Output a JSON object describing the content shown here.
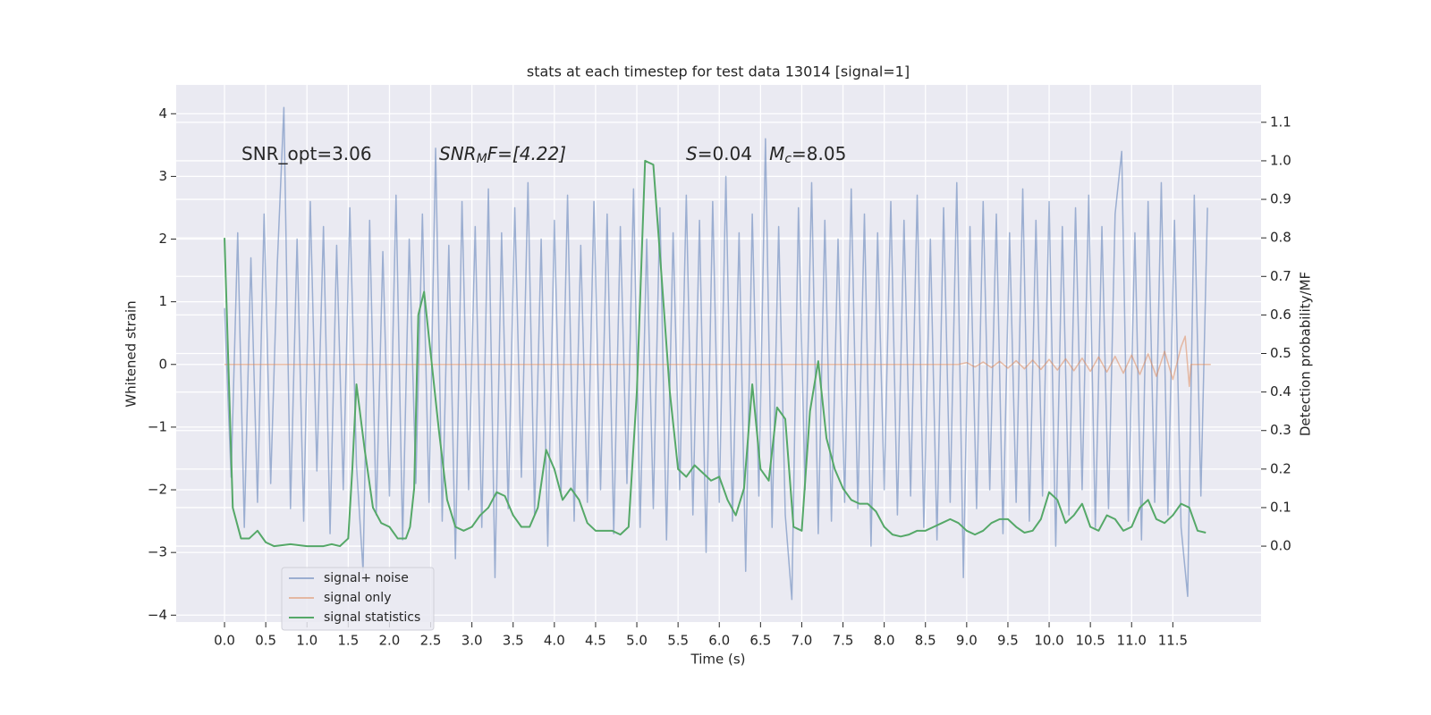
{
  "chart_data": {
    "type": "line",
    "title": "stats at each timestep for test data 13014 [signal=1]",
    "xlabel": "Time (s)",
    "ylabel": "Whitened strain",
    "y2label": "Detection probability/MF",
    "annotations": [
      [
        "SNR_opt=3.06"
      ],
      [
        "SNR",
        "M",
        "F=[4.22]"
      ],
      [
        "S",
        "=0.04   ",
        "M",
        "c",
        "=8.05"
      ]
    ],
    "xlim": [
      -0.586,
      12.57
    ],
    "ylim": [
      -4.11,
      4.46
    ],
    "y2lim": [
      -0.197,
      1.197
    ],
    "xticks": [
      {
        "value": 0,
        "label": "0.0"
      },
      {
        "value": 0.5,
        "label": "0.5"
      },
      {
        "value": 1,
        "label": "1.0"
      },
      {
        "value": 1.5,
        "label": "1.5"
      },
      {
        "value": 2,
        "label": "2.0"
      },
      {
        "value": 2.5,
        "label": "2.5"
      },
      {
        "value": 3,
        "label": "3.0"
      },
      {
        "value": 3.5,
        "label": "3.5"
      },
      {
        "value": 4,
        "label": "4.0"
      },
      {
        "value": 4.5,
        "label": "4.5"
      },
      {
        "value": 5,
        "label": "5.0"
      },
      {
        "value": 5.5,
        "label": "5.5"
      },
      {
        "value": 6,
        "label": "6.0"
      },
      {
        "value": 6.5,
        "label": "6.5"
      },
      {
        "value": 7,
        "label": "7.0"
      },
      {
        "value": 7.5,
        "label": "7.5"
      },
      {
        "value": 8,
        "label": "8.0"
      },
      {
        "value": 8.5,
        "label": "8.5"
      },
      {
        "value": 9,
        "label": "9.0"
      },
      {
        "value": 9.5,
        "label": "9.5"
      },
      {
        "value": 10,
        "label": "10.0"
      },
      {
        "value": 10.5,
        "label": "10.5"
      },
      {
        "value": 11,
        "label": "11.0"
      },
      {
        "value": 11.5,
        "label": "11.5"
      }
    ],
    "yticks": [
      {
        "value": -4,
        "label": "−4"
      },
      {
        "value": -3,
        "label": "−3"
      },
      {
        "value": -2,
        "label": "−2"
      },
      {
        "value": -1,
        "label": "−1"
      },
      0,
      1,
      2,
      3,
      4
    ],
    "y2ticks": [
      {
        "value": 0,
        "label": "0.0"
      },
      {
        "value": 0.1,
        "label": "0.1"
      },
      {
        "value": 0.2,
        "label": "0.2"
      },
      {
        "value": 0.3,
        "label": "0.3"
      },
      {
        "value": 0.4,
        "label": "0.4"
      },
      {
        "value": 0.5,
        "label": "0.5"
      },
      {
        "value": 0.6,
        "label": "0.6"
      },
      {
        "value": 0.7,
        "label": "0.7"
      },
      {
        "value": 0.8,
        "label": "0.8"
      },
      {
        "value": 0.9,
        "label": "0.9"
      },
      {
        "value": 1,
        "label": "1.0"
      },
      {
        "value": 1.1,
        "label": "1.1"
      }
    ],
    "grid": true,
    "legend": "lower left",
    "series": [
      {
        "name": "signal+ noise",
        "color": "#4c72b0",
        "opacity": 0.5,
        "x": [
          0,
          0.08,
          0.16,
          0.24,
          0.32,
          0.4,
          0.48,
          0.56,
          0.64,
          0.72,
          0.8,
          0.88,
          0.96,
          1.04,
          1.12,
          1.2,
          1.28,
          1.36,
          1.44,
          1.52,
          1.6,
          1.68,
          1.76,
          1.84,
          1.92,
          2.0,
          2.08,
          2.16,
          2.24,
          2.32,
          2.4,
          2.48,
          2.56,
          2.64,
          2.72,
          2.8,
          2.88,
          2.96,
          3.04,
          3.12,
          3.2,
          3.28,
          3.36,
          3.44,
          3.52,
          3.6,
          3.68,
          3.76,
          3.84,
          3.92,
          4.0,
          4.08,
          4.16,
          4.24,
          4.32,
          4.4,
          4.48,
          4.56,
          4.64,
          4.72,
          4.8,
          4.88,
          4.96,
          5.04,
          5.12,
          5.2,
          5.28,
          5.36,
          5.44,
          5.52,
          5.6,
          5.68,
          5.76,
          5.84,
          5.92,
          6.0,
          6.08,
          6.16,
          6.24,
          6.32,
          6.4,
          6.48,
          6.56,
          6.64,
          6.72,
          6.8,
          6.88,
          6.96,
          7.04,
          7.12,
          7.2,
          7.28,
          7.36,
          7.44,
          7.52,
          7.6,
          7.68,
          7.76,
          7.84,
          7.92,
          8.0,
          8.08,
          8.16,
          8.24,
          8.32,
          8.4,
          8.48,
          8.56,
          8.64,
          8.72,
          8.8,
          8.88,
          8.96,
          9.04,
          9.12,
          9.2,
          9.28,
          9.36,
          9.44,
          9.52,
          9.6,
          9.68,
          9.76,
          9.84,
          9.92,
          10.0,
          10.08,
          10.16,
          10.24,
          10.32,
          10.4,
          10.48,
          10.56,
          10.64,
          10.72,
          10.8,
          10.88,
          10.96,
          11.04,
          11.12,
          11.2,
          11.28,
          11.36,
          11.44,
          11.52,
          11.6,
          11.68,
          11.76,
          11.84,
          11.92
        ],
        "values": [
          0.9,
          -1.8,
          2.1,
          -2.6,
          1.7,
          -2.2,
          2.4,
          -1.9,
          1.6,
          4.1,
          -2.3,
          2.0,
          -2.5,
          2.6,
          -1.7,
          2.2,
          -2.7,
          1.9,
          -2.0,
          2.5,
          -1.6,
          -3.3,
          2.3,
          -2.4,
          1.8,
          -2.1,
          2.7,
          -2.8,
          2.0,
          -1.9,
          2.4,
          -2.2,
          3.45,
          -2.5,
          1.9,
          -3.1,
          2.6,
          -2.0,
          2.2,
          -2.6,
          2.8,
          -3.4,
          2.1,
          -2.3,
          2.5,
          -1.8,
          2.9,
          -2.4,
          2.0,
          -2.9,
          2.3,
          -2.1,
          2.7,
          -2.5,
          1.9,
          -2.2,
          2.6,
          -2.0,
          2.4,
          -2.7,
          2.2,
          -1.9,
          2.8,
          -2.6,
          2.0,
          -2.3,
          2.5,
          -2.8,
          2.1,
          -2.0,
          2.7,
          -2.4,
          2.3,
          -3.0,
          2.6,
          -2.2,
          3.0,
          -2.5,
          2.1,
          -3.3,
          2.4,
          -2.1,
          3.6,
          -2.6,
          2.2,
          -2.4,
          -3.75,
          2.5,
          -2.0,
          2.9,
          -2.7,
          2.3,
          -2.5,
          2.0,
          -2.2,
          2.8,
          -2.3,
          2.4,
          -2.9,
          2.1,
          -2.0,
          2.6,
          -2.4,
          2.3,
          -2.1,
          2.7,
          -2.6,
          2.0,
          -2.8,
          2.5,
          -2.2,
          2.9,
          -3.4,
          2.2,
          -2.3,
          2.6,
          -2.0,
          2.4,
          -2.7,
          2.1,
          -2.2,
          2.8,
          -2.5,
          2.3,
          -2.1,
          2.6,
          -2.9,
          2.2,
          -2.4,
          2.5,
          -2.0,
          2.7,
          -2.6,
          2.2,
          -2.3,
          2.4,
          3.4,
          -2.5,
          2.1,
          -2.8,
          2.6,
          -2.2,
          2.9,
          -2.4,
          2.3,
          -2.6,
          -3.7,
          2.7,
          -2.1,
          2.5
        ]
      },
      {
        "name": "signal only",
        "color": "#dd8452",
        "opacity": 0.5,
        "x": [
          0,
          8.9,
          9.0,
          9.1,
          9.2,
          9.3,
          9.4,
          9.5,
          9.6,
          9.7,
          9.8,
          9.9,
          10.0,
          10.1,
          10.2,
          10.3,
          10.4,
          10.5,
          10.6,
          10.7,
          10.8,
          10.9,
          11.0,
          11.1,
          11.2,
          11.3,
          11.4,
          11.5,
          11.6,
          11.65,
          11.7,
          11.72,
          11.96
        ],
        "values": [
          0,
          0,
          0.03,
          -0.04,
          0.04,
          -0.05,
          0.05,
          -0.06,
          0.06,
          -0.07,
          0.07,
          -0.08,
          0.08,
          -0.09,
          0.09,
          -0.1,
          0.1,
          -0.11,
          0.12,
          -0.12,
          0.13,
          -0.14,
          0.15,
          -0.16,
          0.17,
          -0.19,
          0.21,
          -0.24,
          0.28,
          0.45,
          -0.35,
          0,
          0
        ]
      },
      {
        "name": "signal statistics",
        "color": "#55a868",
        "opacity": 1,
        "axis": "y2",
        "x": [
          0,
          0.1,
          0.2,
          0.3,
          0.4,
          0.5,
          0.6,
          0.8,
          1.0,
          1.2,
          1.3,
          1.4,
          1.5,
          1.55,
          1.6,
          1.7,
          1.8,
          1.9,
          2.0,
          2.1,
          2.2,
          2.25,
          2.3,
          2.35,
          2.42,
          2.5,
          2.6,
          2.7,
          2.8,
          2.9,
          3.0,
          3.1,
          3.2,
          3.3,
          3.4,
          3.5,
          3.6,
          3.7,
          3.8,
          3.9,
          4.0,
          4.1,
          4.2,
          4.3,
          4.4,
          4.5,
          4.6,
          4.7,
          4.8,
          4.9,
          5.0,
          5.1,
          5.2,
          5.3,
          5.4,
          5.5,
          5.6,
          5.7,
          5.8,
          5.9,
          6.0,
          6.1,
          6.2,
          6.3,
          6.4,
          6.5,
          6.6,
          6.7,
          6.8,
          6.9,
          7.0,
          7.1,
          7.2,
          7.3,
          7.4,
          7.5,
          7.6,
          7.7,
          7.8,
          7.9,
          8.0,
          8.1,
          8.2,
          8.3,
          8.4,
          8.5,
          8.6,
          8.7,
          8.8,
          8.9,
          9.0,
          9.1,
          9.2,
          9.3,
          9.4,
          9.5,
          9.6,
          9.7,
          9.8,
          9.9,
          10.0,
          10.1,
          10.2,
          10.3,
          10.4,
          10.5,
          10.6,
          10.7,
          10.8,
          10.9,
          11.0,
          11.1,
          11.2,
          11.3,
          11.4,
          11.5,
          11.6,
          11.7,
          11.8,
          11.9
        ],
        "values": [
          0.8,
          0.1,
          0.02,
          0.02,
          0.04,
          0.01,
          0.0,
          0.005,
          0.0,
          0.0,
          0.005,
          0.0,
          0.02,
          0.2,
          0.42,
          0.25,
          0.1,
          0.06,
          0.05,
          0.02,
          0.02,
          0.05,
          0.15,
          0.6,
          0.66,
          0.5,
          0.3,
          0.12,
          0.05,
          0.04,
          0.05,
          0.08,
          0.1,
          0.14,
          0.13,
          0.08,
          0.05,
          0.05,
          0.1,
          0.25,
          0.2,
          0.12,
          0.15,
          0.12,
          0.06,
          0.04,
          0.04,
          0.04,
          0.03,
          0.05,
          0.4,
          1.0,
          0.99,
          0.7,
          0.4,
          0.2,
          0.18,
          0.21,
          0.19,
          0.17,
          0.18,
          0.12,
          0.08,
          0.15,
          0.42,
          0.2,
          0.17,
          0.36,
          0.33,
          0.05,
          0.04,
          0.35,
          0.48,
          0.28,
          0.2,
          0.15,
          0.12,
          0.11,
          0.11,
          0.09,
          0.05,
          0.03,
          0.025,
          0.03,
          0.04,
          0.04,
          0.05,
          0.06,
          0.07,
          0.06,
          0.04,
          0.03,
          0.04,
          0.06,
          0.07,
          0.07,
          0.05,
          0.035,
          0.04,
          0.07,
          0.14,
          0.12,
          0.06,
          0.08,
          0.11,
          0.05,
          0.04,
          0.08,
          0.07,
          0.04,
          0.05,
          0.1,
          0.12,
          0.07,
          0.06,
          0.08,
          0.11,
          0.1,
          0.04,
          0.035
        ]
      }
    ]
  }
}
